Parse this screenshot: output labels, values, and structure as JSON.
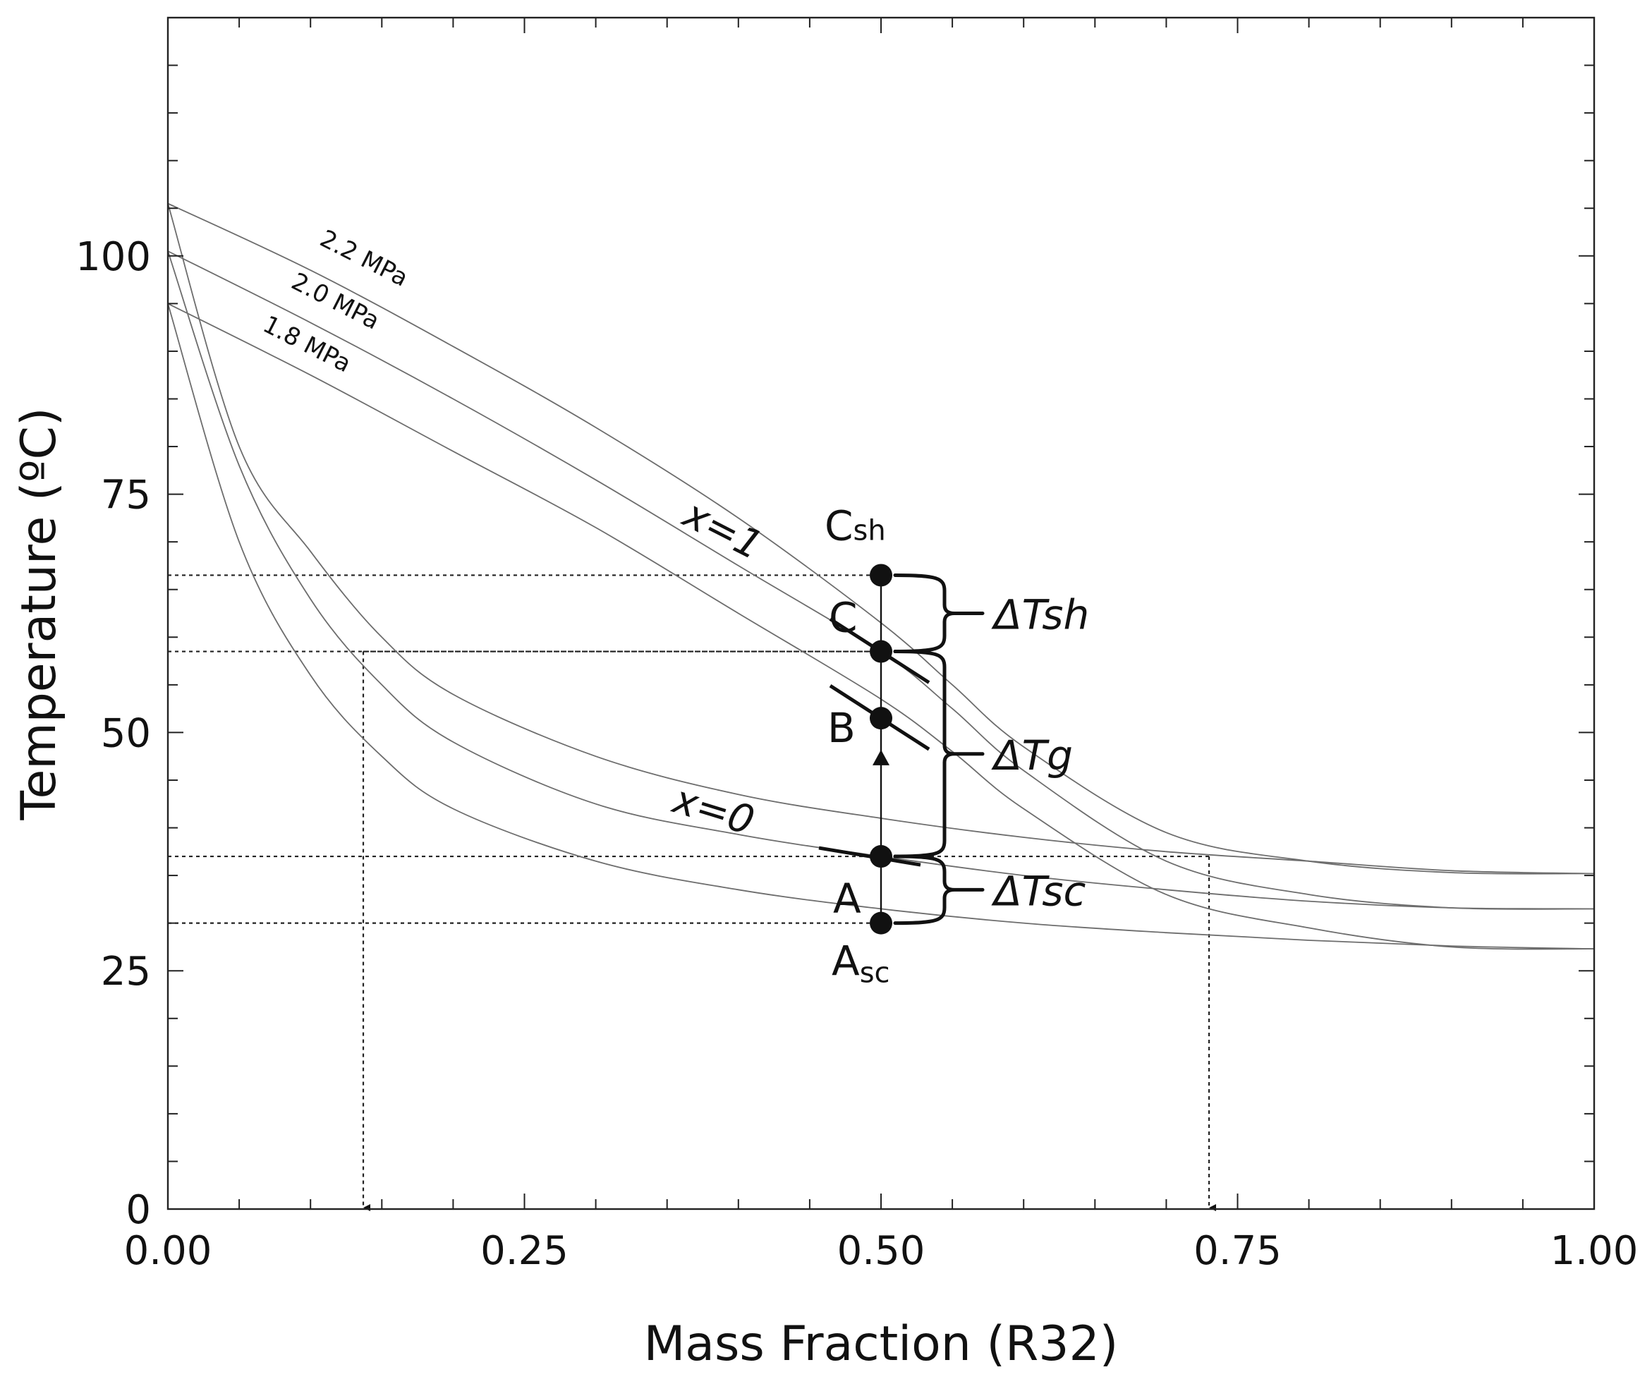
{
  "chart_data": {
    "type": "line",
    "title": "",
    "xlabel": "Mass Fraction (R32)",
    "ylabel": "Temperature (ºC)",
    "xlim": [
      0,
      1
    ],
    "ylim": [
      0,
      125
    ],
    "x_ticks": [
      "0.00",
      "0.25",
      "0.50",
      "0.75",
      "1.00"
    ],
    "y_ticks": [
      "0",
      "25",
      "50",
      "75",
      "100"
    ],
    "grid": false,
    "series": [
      {
        "name": "2.2 MPa dew (x=1)",
        "x": [
          0,
          0.1,
          0.2,
          0.3,
          0.4,
          0.5,
          0.55,
          0.6,
          0.7,
          0.8,
          0.9,
          1.0
        ],
        "y": [
          105.5,
          98.5,
          90.5,
          82,
          72.5,
          61.5,
          55,
          48.5,
          39.5,
          36.5,
          35.3,
          35.2
        ]
      },
      {
        "name": "2.0 MPa dew (x=1)",
        "x": [
          0,
          0.1,
          0.2,
          0.3,
          0.4,
          0.5,
          0.55,
          0.6,
          0.7,
          0.8,
          0.9,
          1.0
        ],
        "y": [
          100.5,
          93,
          85,
          76.5,
          67.5,
          58.5,
          52.5,
          46,
          36.5,
          33,
          31.6,
          31.5
        ]
      },
      {
        "name": "1.8 MPa dew (x=1)",
        "x": [
          0,
          0.1,
          0.2,
          0.3,
          0.4,
          0.5,
          0.55,
          0.6,
          0.7,
          0.8,
          0.9,
          1.0
        ],
        "y": [
          95,
          87.5,
          79.5,
          71.5,
          62.5,
          53.5,
          48,
          42,
          33,
          29.5,
          27.5,
          27.3
        ]
      },
      {
        "name": "2.2 MPa bubble (x=0)",
        "x": [
          0,
          0.05,
          0.1,
          0.15,
          0.2,
          0.3,
          0.4,
          0.5,
          0.6,
          0.7,
          0.8,
          0.9,
          1.0
        ],
        "y": [
          105.5,
          80,
          69,
          60,
          54,
          47.5,
          43.5,
          41,
          39,
          37.5,
          36.5,
          35.5,
          35.2
        ]
      },
      {
        "name": "2.0 MPa bubble (x=0)",
        "x": [
          0,
          0.05,
          0.1,
          0.15,
          0.2,
          0.3,
          0.4,
          0.5,
          0.6,
          0.7,
          0.8,
          0.9,
          1.0
        ],
        "y": [
          100.5,
          78,
          64,
          55,
          49,
          42.5,
          39.3,
          37,
          35,
          33.5,
          32.3,
          31.6,
          31.5
        ]
      },
      {
        "name": "1.8 MPa bubble (x=0)",
        "x": [
          0,
          0.05,
          0.1,
          0.15,
          0.2,
          0.3,
          0.4,
          0.5,
          0.6,
          0.7,
          0.8,
          0.9,
          1.0
        ],
        "y": [
          95,
          70,
          56,
          47.5,
          42,
          36.5,
          33.5,
          31.5,
          30,
          29,
          28.2,
          27.6,
          27.3
        ]
      }
    ],
    "points": [
      {
        "label": "A",
        "sub": "",
        "x": 0.5,
        "y": 37
      },
      {
        "label": "A",
        "sub": "sc",
        "x": 0.5,
        "y": 30
      },
      {
        "label": "B",
        "sub": "",
        "x": 0.5,
        "y": 51.5
      },
      {
        "label": "C",
        "sub": "",
        "x": 0.5,
        "y": 58.5
      },
      {
        "label": "C",
        "sub": "sh",
        "x": 0.5,
        "y": 66.5
      }
    ],
    "pressure_labels": [
      "2.2 MPa",
      "2.0 MPa",
      "1.8 MPa"
    ],
    "curve_labels": {
      "dew": "x=1",
      "bubble": "x=0"
    },
    "deltas": [
      {
        "symbol": "ΔT",
        "sub": "sh",
        "from": 58.5,
        "to": 66.5
      },
      {
        "symbol": "ΔT",
        "sub": "g",
        "from": 37,
        "to": 58.5
      },
      {
        "symbol": "ΔT",
        "sub": "sc",
        "from": 30,
        "to": 37
      }
    ],
    "guide_lines": {
      "horizontal_temps": [
        66.5,
        58.5,
        37,
        30
      ],
      "vertical_fractions": [
        0.137,
        0.73
      ]
    }
  }
}
